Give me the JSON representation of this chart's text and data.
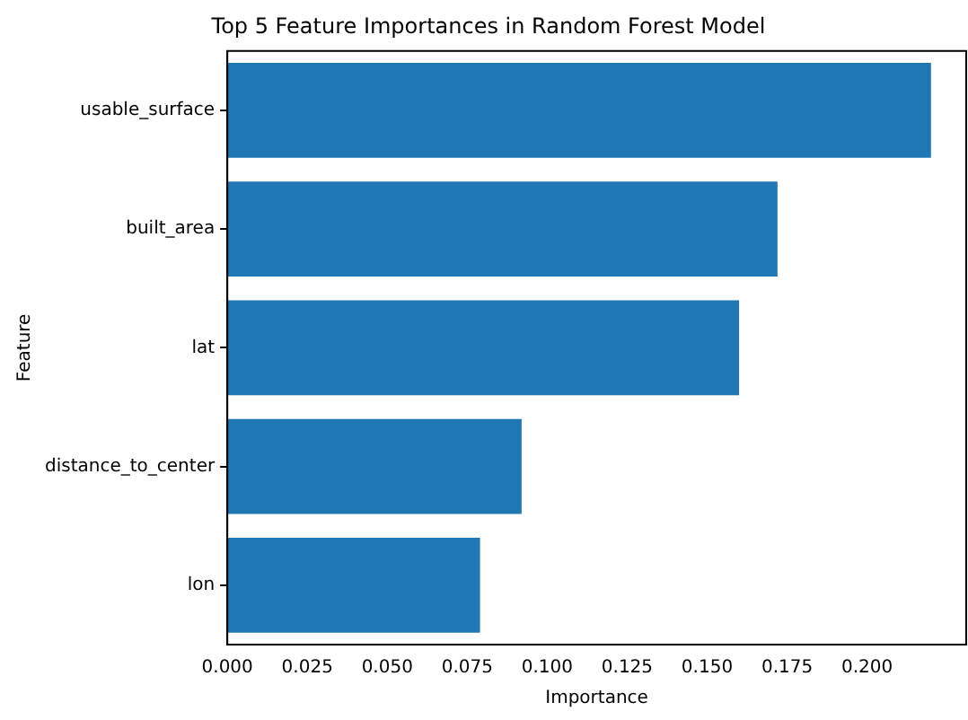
{
  "chart_data": {
    "type": "bar",
    "orientation": "horizontal",
    "title": "Top 5 Feature Importances in Random Forest Model",
    "xlabel": "Importance",
    "ylabel": "Feature",
    "categories": [
      "usable_surface",
      "built_area",
      "lat",
      "distance_to_center",
      "lon"
    ],
    "values": [
      0.22,
      0.172,
      0.16,
      0.092,
      0.079
    ],
    "color": "#1f77b4",
    "xlim": [
      0,
      0.231
    ],
    "xticks": [
      {
        "value": 0,
        "label": "0.000"
      },
      {
        "value": 0.025,
        "label": "0.025"
      },
      {
        "value": 0.05,
        "label": "0.050"
      },
      {
        "value": 0.075,
        "label": "0.075"
      },
      {
        "value": 0.1,
        "label": "0.100"
      },
      {
        "value": 0.125,
        "label": "0.125"
      },
      {
        "value": 0.15,
        "label": "0.150"
      },
      {
        "value": 0.175,
        "label": "0.175"
      },
      {
        "value": 0.2,
        "label": "0.200"
      }
    ],
    "grid": false,
    "legend": false
  }
}
